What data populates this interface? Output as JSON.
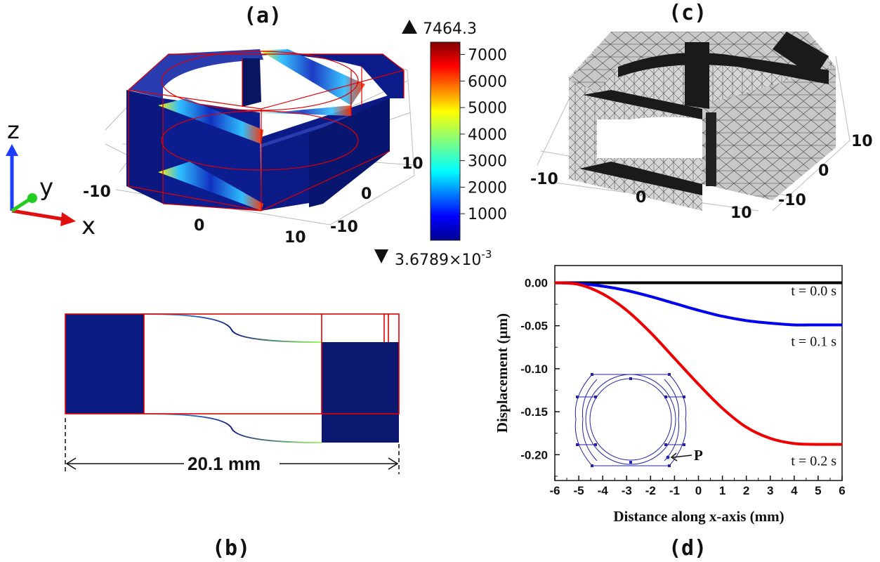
{
  "panels": {
    "a": {
      "label": "(a)",
      "colorbar": {
        "max_label": "7464.3",
        "min_label": "3.6789×10",
        "min_exponent": "-3",
        "ticks": [
          "7000",
          "6000",
          "5000",
          "4000",
          "3000",
          "2000",
          "1000"
        ]
      },
      "triad": {
        "x": "x",
        "y": "y",
        "z": "z"
      },
      "x_ticks": [
        "-10",
        "0",
        "10"
      ],
      "y_ticks": [
        "10",
        "0",
        "-10"
      ]
    },
    "b": {
      "label": "(b)",
      "dimension": "20.1 mm"
    },
    "c": {
      "label": "(c)",
      "x_ticks": [
        "-10",
        "0",
        "10"
      ],
      "y_ticks": [
        "10",
        "0",
        "-10"
      ]
    },
    "d": {
      "label": "(d)",
      "point_label": "P"
    }
  },
  "chart_data": {
    "type": "line",
    "xlabel": "Distance along x-axis (mm)",
    "ylabel": "Displacement (µm)",
    "xlim": [
      -6,
      6
    ],
    "ylim": [
      -0.23,
      0.02
    ],
    "x_ticks": [
      "-6",
      "-5",
      "-4",
      "-3",
      "-2",
      "-1",
      "0",
      "1",
      "2",
      "3",
      "4",
      "5",
      "6"
    ],
    "y_ticks": [
      "0.00",
      "-0.05",
      "-0.10",
      "-0.15",
      "-0.20"
    ],
    "grid": false,
    "series": [
      {
        "name": "t = 0.0 s",
        "color": "#000000",
        "x": [
          -6,
          -5,
          -4,
          -3,
          -2,
          -1,
          0,
          1,
          2,
          3,
          4,
          5,
          6
        ],
        "y": [
          0,
          0,
          0,
          0,
          0,
          0,
          0,
          0,
          0,
          0,
          0,
          0,
          0
        ]
      },
      {
        "name": "t = 0.1 s",
        "color": "#0000ee",
        "x": [
          -6,
          -5,
          -4,
          -3,
          -2,
          -1,
          0,
          1,
          2,
          3,
          4,
          5,
          6
        ],
        "y": [
          0,
          -0.001,
          -0.004,
          -0.009,
          -0.016,
          -0.024,
          -0.032,
          -0.039,
          -0.044,
          -0.047,
          -0.049,
          -0.049,
          -0.049
        ]
      },
      {
        "name": "t = 0.2 s",
        "color": "#ee0000",
        "x": [
          -6,
          -5,
          -4,
          -3,
          -2,
          -1,
          0,
          1,
          2,
          3,
          4,
          5,
          6
        ],
        "y": [
          0,
          -0.002,
          -0.013,
          -0.032,
          -0.058,
          -0.088,
          -0.118,
          -0.146,
          -0.168,
          -0.181,
          -0.187,
          -0.188,
          -0.188
        ]
      }
    ]
  },
  "colors": {
    "frame": "#e00000",
    "solid": "#0a1a80",
    "mesh_gray": "#cfcfcf",
    "mesh_dense": "#1a1a1a"
  }
}
